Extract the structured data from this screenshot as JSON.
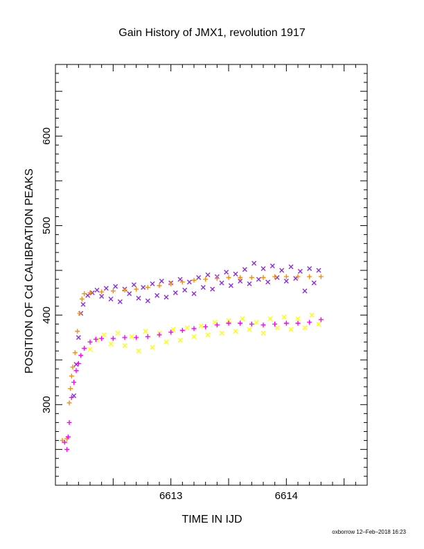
{
  "chart_data": {
    "type": "scatter",
    "title": "Gain History of JMX1, revolution 1917",
    "xlabel": "TIME IN IJD",
    "ylabel": "POSITION OF Cd CALIBRATION PEAKS",
    "xlim": [
      6612.0,
      6614.7
    ],
    "ylim": [
      210,
      680
    ],
    "x_ticks": [
      "6613",
      "6614"
    ],
    "y_ticks": [
      "300",
      "400",
      "500",
      "600"
    ],
    "grid": false,
    "colors": {
      "high_scatter": "#8a2be2",
      "high_smooth": "#ff8c00",
      "low_scatter": "#ffff00",
      "low_smooth": "#ff00ff"
    },
    "series": [
      {
        "marker": "x",
        "color": "#8a2be2",
        "points": [
          [
            6612.16,
            310
          ],
          [
            6612.18,
            345
          ],
          [
            6612.2,
            375
          ],
          [
            6612.22,
            402
          ],
          [
            6612.24,
            412
          ],
          [
            6612.28,
            422
          ],
          [
            6612.32,
            425
          ],
          [
            6612.36,
            428
          ],
          [
            6612.4,
            421
          ],
          [
            6612.44,
            430
          ],
          [
            6612.48,
            418
          ],
          [
            6612.52,
            432
          ],
          [
            6612.56,
            415
          ],
          [
            6612.6,
            429
          ],
          [
            6612.64,
            424
          ],
          [
            6612.68,
            434
          ],
          [
            6612.72,
            419
          ],
          [
            6612.76,
            431
          ],
          [
            6612.8,
            416
          ],
          [
            6612.84,
            435
          ],
          [
            6612.88,
            422
          ],
          [
            6612.92,
            438
          ],
          [
            6612.96,
            420
          ],
          [
            6613.0,
            436
          ],
          [
            6613.04,
            425
          ],
          [
            6613.08,
            440
          ],
          [
            6613.12,
            428
          ],
          [
            6613.16,
            437
          ],
          [
            6613.2,
            424
          ],
          [
            6613.24,
            442
          ],
          [
            6613.28,
            431
          ],
          [
            6613.32,
            445
          ],
          [
            6613.36,
            429
          ],
          [
            6613.4,
            443
          ],
          [
            6613.44,
            436
          ],
          [
            6613.48,
            448
          ],
          [
            6613.52,
            433
          ],
          [
            6613.56,
            446
          ],
          [
            6613.6,
            438
          ],
          [
            6613.64,
            451
          ],
          [
            6613.68,
            435
          ],
          [
            6613.72,
            458
          ],
          [
            6613.76,
            440
          ],
          [
            6613.8,
            452
          ],
          [
            6613.84,
            437
          ],
          [
            6613.88,
            455
          ],
          [
            6613.92,
            442
          ],
          [
            6613.96,
            450
          ],
          [
            6614.0,
            438
          ],
          [
            6614.04,
            454
          ],
          [
            6614.08,
            441
          ],
          [
            6614.12,
            449
          ],
          [
            6614.16,
            427
          ],
          [
            6614.2,
            452
          ],
          [
            6614.24,
            436
          ],
          [
            6614.28,
            450
          ]
        ]
      },
      {
        "marker": "+",
        "color": "#ff8c00",
        "points": [
          [
            6612.06,
            260
          ],
          [
            6612.1,
            262
          ],
          [
            6612.12,
            302
          ],
          [
            6612.13,
            318
          ],
          [
            6612.14,
            332
          ],
          [
            6612.15,
            342
          ],
          [
            6612.17,
            358
          ],
          [
            6612.19,
            382
          ],
          [
            6612.21,
            402
          ],
          [
            6612.23,
            418
          ],
          [
            6612.25,
            424
          ],
          [
            6612.3,
            425
          ],
          [
            6612.4,
            426
          ],
          [
            6612.5,
            427
          ],
          [
            6612.6,
            428
          ],
          [
            6612.7,
            429
          ],
          [
            6612.8,
            431
          ],
          [
            6612.9,
            433
          ],
          [
            6613.0,
            435
          ],
          [
            6613.1,
            437
          ],
          [
            6613.2,
            439
          ],
          [
            6613.3,
            440
          ],
          [
            6613.4,
            441
          ],
          [
            6613.5,
            442
          ],
          [
            6613.6,
            442
          ],
          [
            6613.7,
            442
          ],
          [
            6613.8,
            442
          ],
          [
            6613.9,
            443
          ],
          [
            6614.0,
            443
          ],
          [
            6614.1,
            443
          ],
          [
            6614.2,
            443
          ],
          [
            6614.3,
            443
          ]
        ]
      },
      {
        "marker": "x",
        "color": "#ffff00",
        "points": [
          [
            6612.3,
            362
          ],
          [
            6612.36,
            372
          ],
          [
            6612.42,
            378
          ],
          [
            6612.48,
            368
          ],
          [
            6612.54,
            380
          ],
          [
            6612.6,
            366
          ],
          [
            6612.66,
            376
          ],
          [
            6612.72,
            360
          ],
          [
            6612.78,
            382
          ],
          [
            6612.84,
            364
          ],
          [
            6612.9,
            380
          ],
          [
            6612.96,
            370
          ],
          [
            6613.02,
            384
          ],
          [
            6613.08,
            372
          ],
          [
            6613.14,
            386
          ],
          [
            6613.2,
            376
          ],
          [
            6613.26,
            388
          ],
          [
            6613.32,
            378
          ],
          [
            6613.38,
            392
          ],
          [
            6613.44,
            380
          ],
          [
            6613.5,
            394
          ],
          [
            6613.56,
            382
          ],
          [
            6613.62,
            396
          ],
          [
            6613.68,
            384
          ],
          [
            6613.74,
            392
          ],
          [
            6613.8,
            380
          ],
          [
            6613.86,
            396
          ],
          [
            6613.92,
            386
          ],
          [
            6613.98,
            398
          ],
          [
            6614.04,
            384
          ],
          [
            6614.1,
            396
          ],
          [
            6614.16,
            386
          ],
          [
            6614.22,
            400
          ],
          [
            6614.28,
            390
          ]
        ]
      },
      {
        "marker": "+",
        "color": "#ff00ff",
        "points": [
          [
            6612.08,
            258
          ],
          [
            6612.1,
            250
          ],
          [
            6612.11,
            264
          ],
          [
            6612.12,
            280
          ],
          [
            6612.14,
            308
          ],
          [
            6612.16,
            325
          ],
          [
            6612.18,
            338
          ],
          [
            6612.2,
            346
          ],
          [
            6612.22,
            355
          ],
          [
            6612.25,
            363
          ],
          [
            6612.3,
            370
          ],
          [
            6612.35,
            373
          ],
          [
            6612.4,
            374
          ],
          [
            6612.5,
            374
          ],
          [
            6612.6,
            375
          ],
          [
            6612.7,
            375
          ],
          [
            6612.8,
            376
          ],
          [
            6612.9,
            378
          ],
          [
            6613.0,
            381
          ],
          [
            6613.1,
            383
          ],
          [
            6613.2,
            385
          ],
          [
            6613.3,
            387
          ],
          [
            6613.4,
            389
          ],
          [
            6613.5,
            391
          ],
          [
            6613.6,
            391
          ],
          [
            6613.7,
            390
          ],
          [
            6613.8,
            389
          ],
          [
            6613.9,
            390
          ],
          [
            6614.0,
            391
          ],
          [
            6614.1,
            391
          ],
          [
            6614.2,
            392
          ],
          [
            6614.3,
            395
          ]
        ]
      }
    ]
  },
  "footer": "oxborrow 12–Feb–2018 16:23"
}
